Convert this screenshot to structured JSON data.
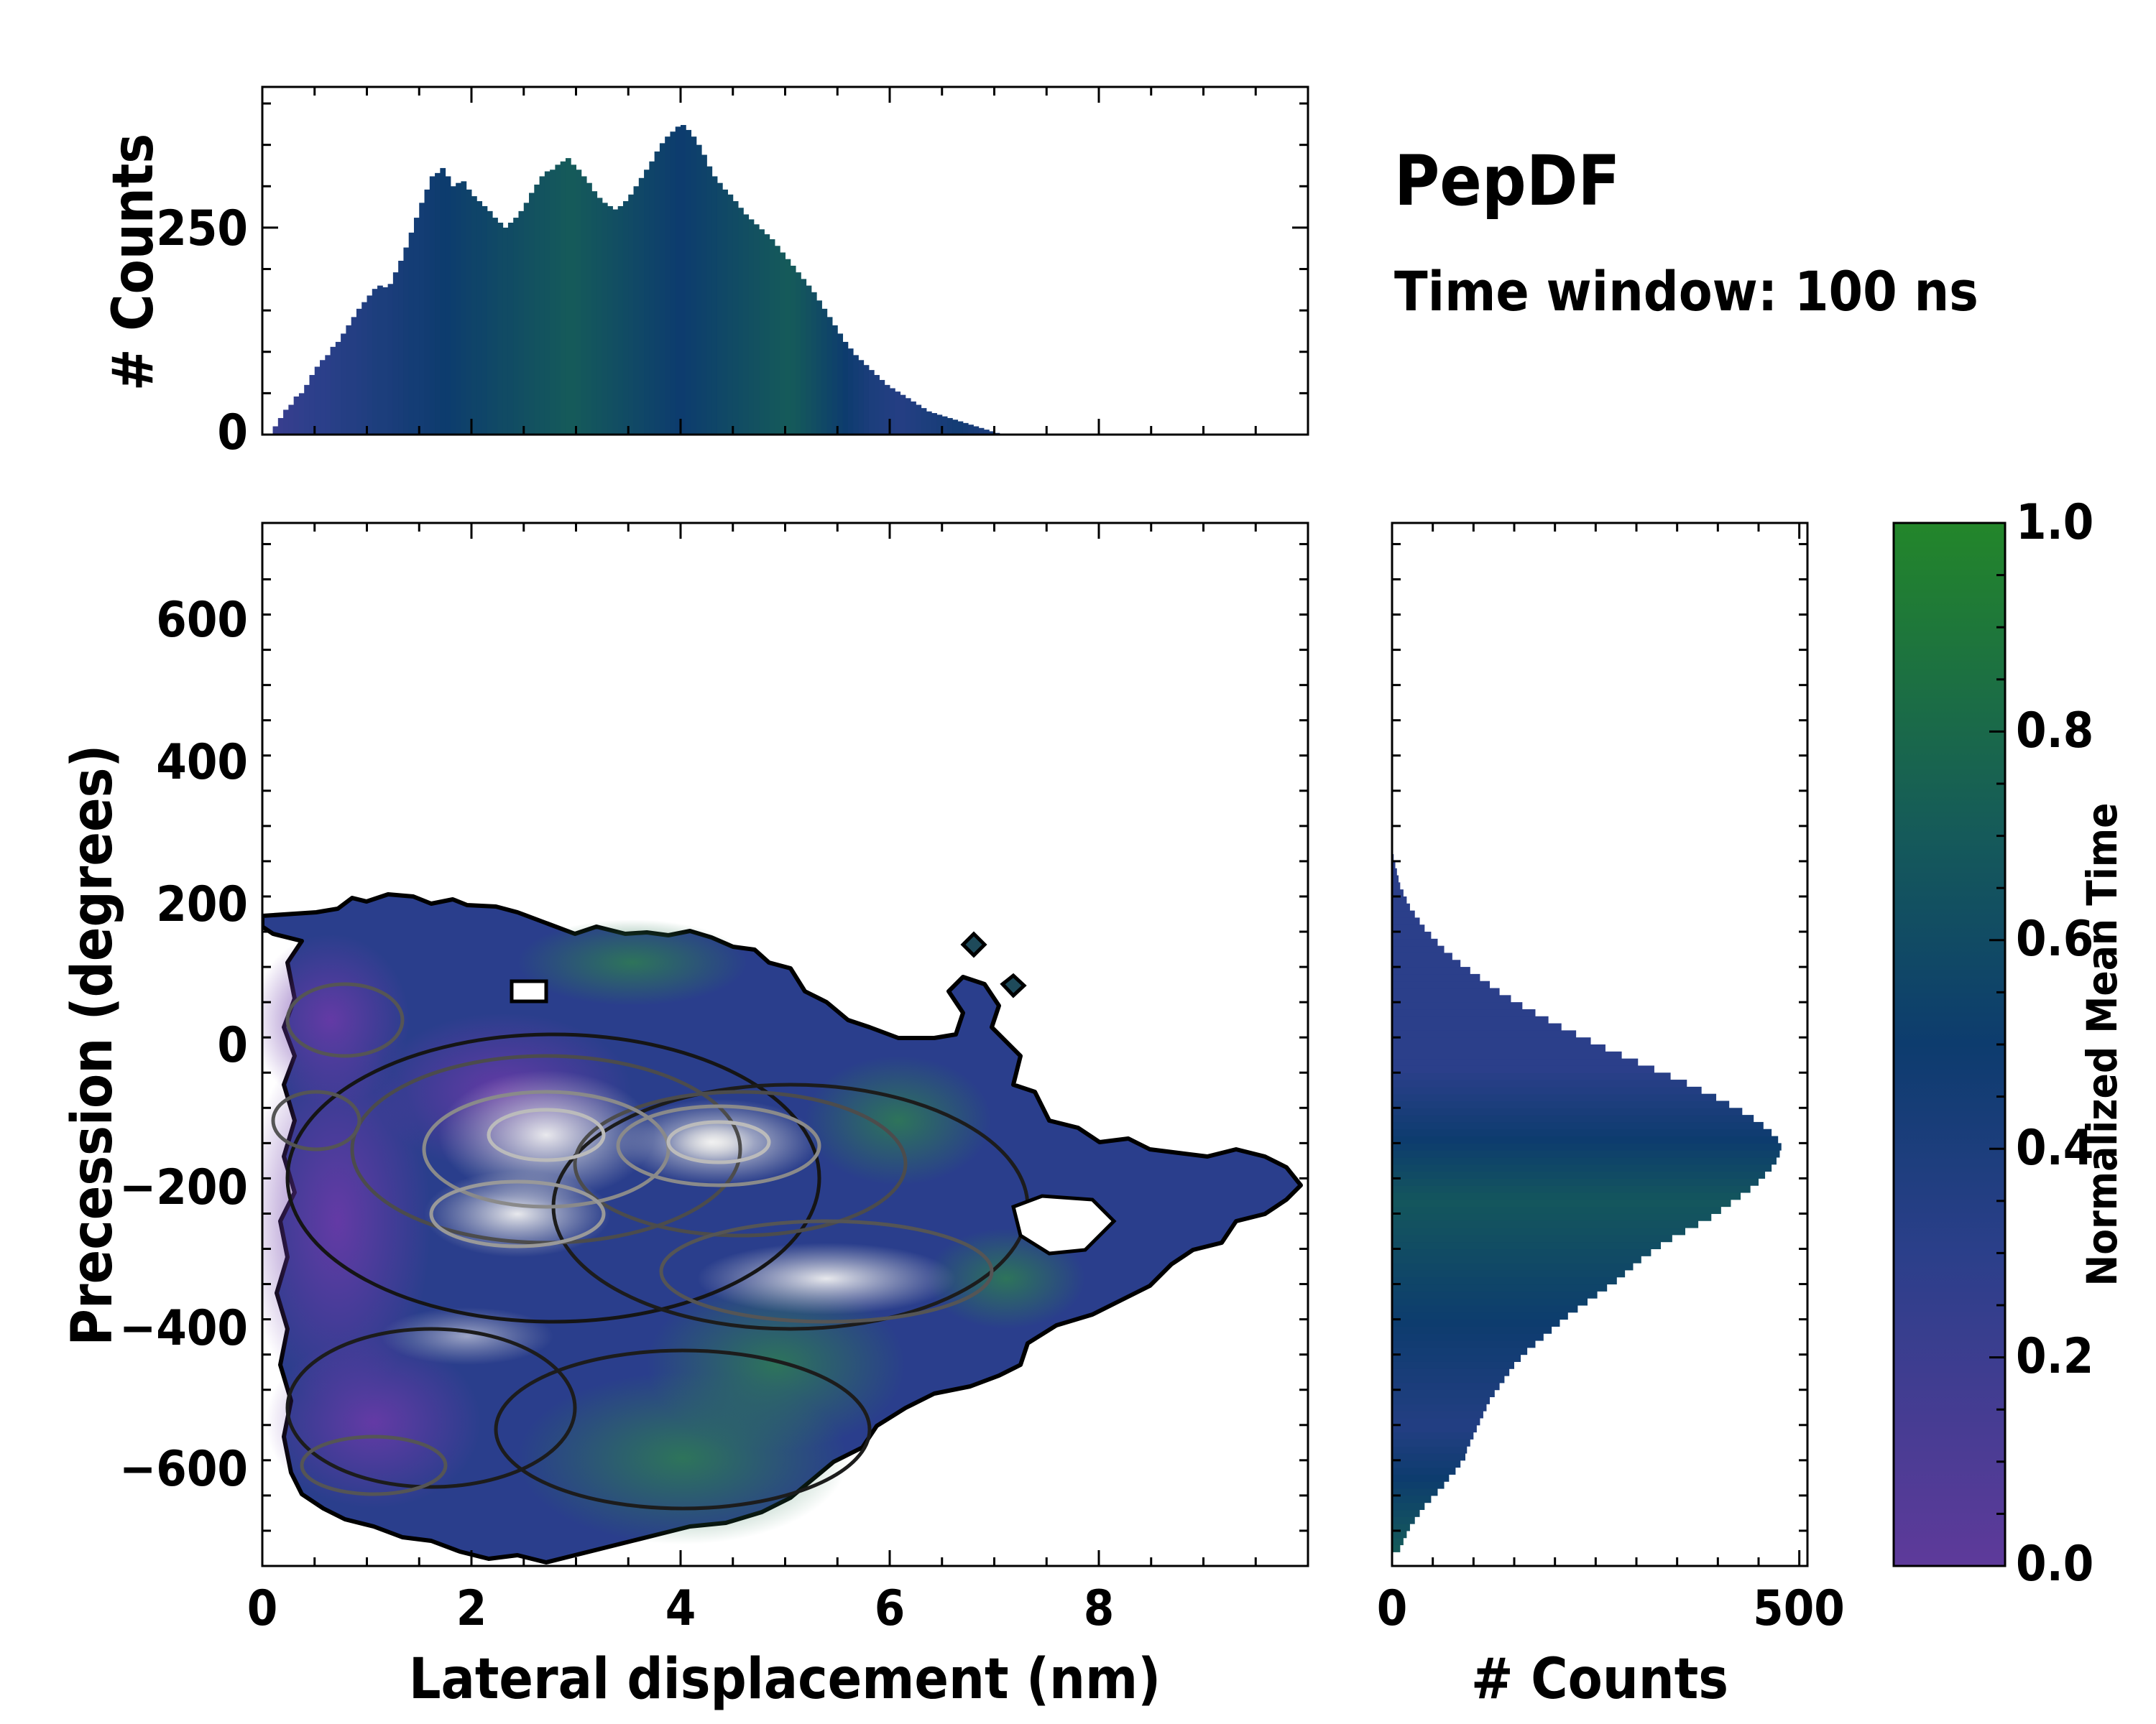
{
  "annotation": {
    "title": "PepDF",
    "subtitle": "Time window: 100 ns"
  },
  "colors": {
    "low": "#5e3a9a",
    "mid": "#0d3c6e",
    "high": "#23862a",
    "frame": "#000000"
  },
  "chart_data": [
    {
      "id": "top-histogram",
      "type": "bar",
      "title": "",
      "xlabel": "",
      "ylabel": "# Counts",
      "xlim": [
        0,
        10
      ],
      "ylim": [
        0,
        420
      ],
      "yticks": [
        "0",
        "250"
      ],
      "bin_width": 0.05,
      "values": [
        0,
        0,
        10,
        20,
        30,
        36,
        46,
        50,
        60,
        72,
        82,
        90,
        96,
        106,
        112,
        122,
        132,
        142,
        152,
        160,
        168,
        176,
        180,
        178,
        182,
        196,
        210,
        226,
        244,
        262,
        280,
        296,
        312,
        316,
        322,
        312,
        300,
        304,
        306,
        296,
        288,
        282,
        276,
        270,
        262,
        256,
        250,
        256,
        262,
        270,
        280,
        292,
        302,
        312,
        318,
        320,
        326,
        330,
        334,
        326,
        320,
        312,
        304,
        294,
        286,
        280,
        276,
        272,
        276,
        282,
        290,
        300,
        310,
        320,
        330,
        342,
        352,
        360,
        366,
        372,
        374,
        368,
        360,
        350,
        338,
        324,
        312,
        304,
        296,
        290,
        282,
        274,
        266,
        260,
        254,
        248,
        242,
        236,
        228,
        220,
        212,
        204,
        196,
        188,
        180,
        172,
        162,
        152,
        142,
        132,
        122,
        112,
        104,
        96,
        90,
        84,
        78,
        72,
        66,
        60,
        56,
        52,
        48,
        44,
        40,
        36,
        32,
        28,
        26,
        24,
        22,
        20,
        18,
        16,
        14,
        12,
        10,
        8,
        6,
        4,
        2,
        0,
        0,
        0,
        0,
        0,
        0,
        0,
        0,
        0,
        0
      ],
      "mean_time": [
        0.22,
        0.22,
        0.23,
        0.23,
        0.24,
        0.25,
        0.26,
        0.27,
        0.28,
        0.29,
        0.3,
        0.3,
        0.31,
        0.32,
        0.33,
        0.34,
        0.35,
        0.35,
        0.36,
        0.37,
        0.38,
        0.39,
        0.4,
        0.4,
        0.41,
        0.42,
        0.43,
        0.44,
        0.45,
        0.45,
        0.46,
        0.47,
        0.48,
        0.49,
        0.5,
        0.5,
        0.51,
        0.52,
        0.53,
        0.54,
        0.55,
        0.55,
        0.56,
        0.57,
        0.58,
        0.59,
        0.6,
        0.6,
        0.61,
        0.62,
        0.63,
        0.64,
        0.65,
        0.65,
        0.66,
        0.67,
        0.68,
        0.69,
        0.7,
        0.7,
        0.69,
        0.68,
        0.67,
        0.66,
        0.65,
        0.64,
        0.63,
        0.62,
        0.61,
        0.6,
        0.59,
        0.58,
        0.57,
        0.56,
        0.55,
        0.54,
        0.53,
        0.52,
        0.51,
        0.5,
        0.5,
        0.51,
        0.52,
        0.53,
        0.54,
        0.55,
        0.56,
        0.57,
        0.58,
        0.59,
        0.6,
        0.61,
        0.62,
        0.63,
        0.64,
        0.65,
        0.66,
        0.67,
        0.68,
        0.69,
        0.7,
        0.69,
        0.68,
        0.66,
        0.64,
        0.62,
        0.6,
        0.58,
        0.56,
        0.54,
        0.52,
        0.5,
        0.48,
        0.46,
        0.44,
        0.42,
        0.4,
        0.39,
        0.38,
        0.37,
        0.36,
        0.35,
        0.35,
        0.36,
        0.37,
        0.38,
        0.39,
        0.4,
        0.41,
        0.42,
        0.43,
        0.44,
        0.45,
        0.45,
        0.44,
        0.43,
        0.42,
        0.41,
        0.4,
        0.4,
        0.4,
        0.4,
        0.4,
        0.4,
        0.4,
        0.4,
        0.4,
        0.4,
        0.4,
        0.4
      ]
    },
    {
      "id": "main-2d-histogram",
      "type": "heatmap",
      "title": "",
      "xlabel": "Lateral displacement (nm)",
      "ylabel": "Precession (degrees)",
      "xlim": [
        0,
        10
      ],
      "ylim": [
        -740,
        740
      ],
      "xticks": [
        "0",
        "2",
        "4",
        "6",
        "8"
      ],
      "yticks": [
        "−600",
        "−400",
        "−200",
        "0",
        "200",
        "400",
        "600"
      ],
      "contour_levels": 6,
      "description_of_density": "broad distribution centred near lateral 2-5 nm and precession -150 to -300 degrees; extends from about -720 to 200 degrees and 0 to 9.9 nm"
    },
    {
      "id": "right-histogram",
      "type": "bar",
      "orientation": "horizontal",
      "title": "",
      "xlabel": "# Counts",
      "ylabel": "",
      "xlim": [
        0,
        510
      ],
      "ylim": [
        -740,
        740
      ],
      "xticks": [
        "0",
        "500"
      ],
      "bin_width": 10,
      "y_start": -720,
      "values": [
        10,
        14,
        18,
        22,
        28,
        34,
        40,
        48,
        56,
        64,
        70,
        78,
        84,
        90,
        92,
        96,
        100,
        104,
        108,
        112,
        116,
        120,
        126,
        132,
        138,
        144,
        150,
        158,
        166,
        176,
        186,
        196,
        206,
        216,
        228,
        240,
        252,
        264,
        276,
        286,
        296,
        306,
        318,
        330,
        344,
        360,
        376,
        392,
        404,
        416,
        428,
        440,
        450,
        458,
        466,
        472,
        476,
        478,
        474,
        466,
        456,
        444,
        430,
        414,
        398,
        380,
        362,
        342,
        322,
        302,
        282,
        262,
        244,
        226,
        208,
        192,
        176,
        160,
        146,
        132,
        120,
        108,
        96,
        84,
        74,
        64,
        56,
        48,
        40,
        34,
        28,
        22,
        18,
        14,
        10,
        8,
        6,
        4,
        2,
        0
      ],
      "mean_time": [
        0.7,
        0.68,
        0.66,
        0.64,
        0.62,
        0.6,
        0.58,
        0.56,
        0.54,
        0.52,
        0.5,
        0.48,
        0.46,
        0.44,
        0.42,
        0.4,
        0.38,
        0.36,
        0.36,
        0.37,
        0.38,
        0.39,
        0.4,
        0.41,
        0.42,
        0.43,
        0.44,
        0.45,
        0.46,
        0.47,
        0.48,
        0.49,
        0.5,
        0.51,
        0.52,
        0.53,
        0.54,
        0.55,
        0.56,
        0.57,
        0.58,
        0.59,
        0.6,
        0.61,
        0.62,
        0.63,
        0.64,
        0.65,
        0.66,
        0.67,
        0.66,
        0.64,
        0.62,
        0.6,
        0.58,
        0.56,
        0.54,
        0.52,
        0.5,
        0.48,
        0.46,
        0.44,
        0.42,
        0.4,
        0.38,
        0.36,
        0.34,
        0.32,
        0.3,
        0.3,
        0.3,
        0.3,
        0.3,
        0.3,
        0.3,
        0.3,
        0.3,
        0.3,
        0.3,
        0.3,
        0.3,
        0.3,
        0.3,
        0.3,
        0.3,
        0.3,
        0.3,
        0.3,
        0.3,
        0.3,
        0.3,
        0.3,
        0.3,
        0.3,
        0.3,
        0.3,
        0.3,
        0.3,
        0.3,
        0.3
      ]
    },
    {
      "id": "colorbar",
      "type": "colorbar",
      "label": "Normalized Mean Time",
      "range": [
        0.0,
        1.0
      ],
      "ticks": [
        "0.0",
        "0.2",
        "0.4",
        "0.6",
        "0.8",
        "1.0"
      ]
    }
  ]
}
